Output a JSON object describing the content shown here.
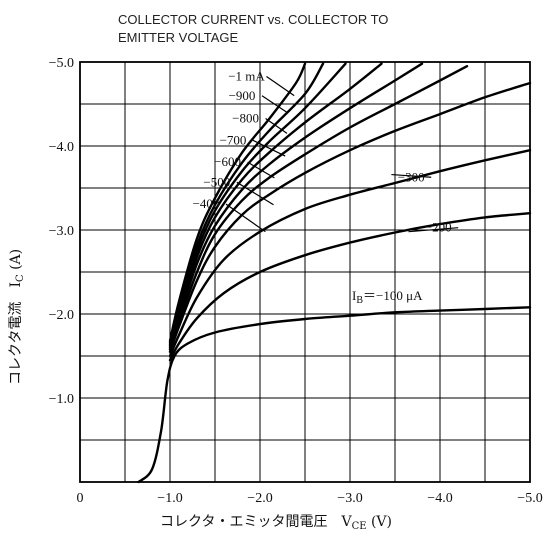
{
  "chart_data": {
    "type": "line",
    "title_line1": "COLLECTOR CURRENT vs.  COLLECTOR TO",
    "title_line2": "EMITTER VOLTAGE",
    "xlabel": "コレクタ・エミッタ間電圧　V",
    "xlabel_sub": "CE",
    "xlabel_unit": " (V)",
    "ylabel": "コレクタ電流　I",
    "ylabel_sub": "C",
    "ylabel_unit": " (A)",
    "xlim": [
      0,
      -5.0
    ],
    "ylim": [
      0,
      -5.0
    ],
    "x_ticks": [
      {
        "v": 0,
        "label": "0"
      },
      {
        "v": -1.0,
        "label": "−1.0"
      },
      {
        "v": -2.0,
        "label": "−2.0"
      },
      {
        "v": -3.0,
        "label": "−3.0"
      },
      {
        "v": -4.0,
        "label": "−4.0"
      },
      {
        "v": -5.0,
        "label": "−5.0"
      }
    ],
    "y_ticks": [
      {
        "v": -1.0,
        "label": "−1.0"
      },
      {
        "v": -2.0,
        "label": "−2.0"
      },
      {
        "v": -3.0,
        "label": "−3.0"
      },
      {
        "v": -4.0,
        "label": "−4.0"
      },
      {
        "v": -5.0,
        "label": "−5.0"
      }
    ],
    "grid": true,
    "series": [
      {
        "name": "IB=−100 μA",
        "x": [
          -0.65,
          -0.8,
          -0.9,
          -0.97,
          -1.05,
          -1.2,
          -1.5,
          -2.0,
          -2.5,
          -3.0,
          -3.5,
          -4.0,
          -4.5,
          -5.0
        ],
        "y": [
          0.0,
          -0.15,
          -0.6,
          -1.2,
          -1.5,
          -1.65,
          -1.78,
          -1.88,
          -1.94,
          -1.98,
          -2.02,
          -2.04,
          -2.06,
          -2.08
        ]
      },
      {
        "name": "−200",
        "x": [
          -1.0,
          -1.1,
          -1.3,
          -1.6,
          -2.0,
          -2.5,
          -3.0,
          -3.5,
          -4.0,
          -4.5,
          -5.0
        ],
        "y": [
          -1.45,
          -1.65,
          -1.95,
          -2.25,
          -2.5,
          -2.7,
          -2.85,
          -2.97,
          -3.07,
          -3.15,
          -3.2
        ]
      },
      {
        "name": "−300",
        "x": [
          -1.0,
          -1.1,
          -1.3,
          -1.6,
          -2.0,
          -2.5,
          -3.0,
          -3.5,
          -4.0,
          -4.5,
          -5.0
        ],
        "y": [
          -1.5,
          -1.75,
          -2.2,
          -2.65,
          -2.98,
          -3.25,
          -3.42,
          -3.56,
          -3.7,
          -3.83,
          -3.95
        ]
      },
      {
        "name": "−400",
        "x": [
          -1.0,
          -1.1,
          -1.3,
          -1.5,
          -1.8,
          -2.1,
          -2.5,
          -3.0,
          -3.5,
          -4.0,
          -4.5,
          -5.0
        ],
        "y": [
          -1.55,
          -1.85,
          -2.4,
          -2.8,
          -3.18,
          -3.42,
          -3.68,
          -3.95,
          -4.18,
          -4.38,
          -4.58,
          -4.75
        ]
      },
      {
        "name": "−500",
        "x": [
          -1.0,
          -1.1,
          -1.3,
          -1.5,
          -1.8,
          -2.1,
          -2.5,
          -3.0,
          -3.5,
          -4.0,
          -4.3
        ],
        "y": [
          -1.58,
          -1.9,
          -2.5,
          -2.95,
          -3.35,
          -3.62,
          -3.9,
          -4.22,
          -4.5,
          -4.78,
          -4.95
        ]
      },
      {
        "name": "−600",
        "x": [
          -1.0,
          -1.1,
          -1.3,
          -1.5,
          -1.8,
          -2.1,
          -2.5,
          -3.0,
          -3.5,
          -3.8
        ],
        "y": [
          -1.6,
          -1.95,
          -2.6,
          -3.05,
          -3.48,
          -3.78,
          -4.1,
          -4.45,
          -4.78,
          -4.98
        ]
      },
      {
        "name": "−700",
        "x": [
          -1.0,
          -1.1,
          -1.3,
          -1.5,
          -1.8,
          -2.1,
          -2.5,
          -3.0,
          -3.35
        ],
        "y": [
          -1.62,
          -2.0,
          -2.68,
          -3.15,
          -3.6,
          -3.92,
          -4.28,
          -4.68,
          -4.98
        ]
      },
      {
        "name": "−800",
        "x": [
          -1.0,
          -1.1,
          -1.3,
          -1.5,
          -1.8,
          -2.1,
          -2.5,
          -2.95
        ],
        "y": [
          -1.64,
          -2.05,
          -2.75,
          -3.23,
          -3.7,
          -4.05,
          -4.45,
          -4.98
        ]
      },
      {
        "name": "−900",
        "x": [
          -1.0,
          -1.1,
          -1.3,
          -1.5,
          -1.8,
          -2.1,
          -2.5,
          -2.7
        ],
        "y": [
          -1.66,
          -2.1,
          -2.82,
          -3.3,
          -3.8,
          -4.18,
          -4.62,
          -4.98
        ]
      },
      {
        "name": "−1 mA",
        "x": [
          -1.0,
          -1.1,
          -1.3,
          -1.5,
          -1.8,
          -2.1,
          -2.4,
          -2.5
        ],
        "y": [
          -1.68,
          -2.15,
          -2.9,
          -3.38,
          -3.92,
          -4.32,
          -4.75,
          -4.98
        ]
      }
    ],
    "annotations": [
      {
        "text": "−1  mA",
        "x": -1.85,
        "y": -4.78,
        "tx": -2.38,
        "ty": -4.6
      },
      {
        "text": "−900",
        "x": -1.8,
        "y": -4.55,
        "tx": -2.3,
        "ty": -4.4
      },
      {
        "text": "−800",
        "x": -1.84,
        "y": -4.28,
        "tx": -2.3,
        "ty": -4.15
      },
      {
        "text": "−700",
        "x": -1.7,
        "y": -4.02,
        "tx": -2.28,
        "ty": -3.88
      },
      {
        "text": "−600",
        "x": -1.64,
        "y": -3.76,
        "tx": -2.16,
        "ty": -3.62
      },
      {
        "text": "−500",
        "x": -1.52,
        "y": -3.52,
        "tx": -2.15,
        "ty": -3.3
      },
      {
        "text": "−400",
        "x": -1.4,
        "y": -3.26,
        "tx": -2.06,
        "ty": -2.98
      },
      {
        "text": "−300",
        "x": -3.68,
        "y": -3.58,
        "tx": -3.46,
        "ty": -3.66
      },
      {
        "text": "−200",
        "x": -3.98,
        "y": -2.98,
        "tx": -3.65,
        "ty": -2.98
      }
    ],
    "ib_label": "I",
    "ib_sub": "B",
    "ib_rest": "＝−100  μA"
  }
}
